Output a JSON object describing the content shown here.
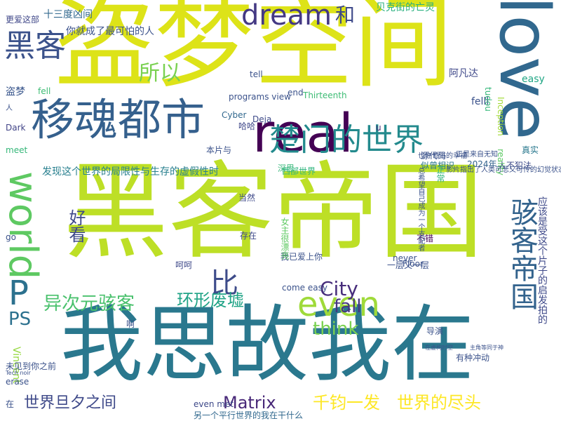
{
  "words": [
    {
      "text": "盗梦空间",
      "color": "#dde318"
    },
    {
      "text": "黑客帝国",
      "color": "#bddf26"
    },
    {
      "text": "我思故我在",
      "color": "#2a788e"
    },
    {
      "text": "love",
      "color": "#31688e"
    },
    {
      "text": "real",
      "color": "#440154"
    },
    {
      "text": "移魂都市",
      "color": "#35608d"
    },
    {
      "text": "楚门的世界",
      "color": "#238a8d"
    },
    {
      "text": "world",
      "color": "#5ec962"
    },
    {
      "text": "黑客",
      "color": "#3b528b"
    },
    {
      "text": "dream",
      "color": "#443983"
    },
    {
      "text": "所以",
      "color": "#7ad151"
    },
    {
      "text": "和",
      "color": "#3e4989"
    },
    {
      "text": "even",
      "color": "#9fda3a"
    },
    {
      "text": "比",
      "color": "#3e4c8a"
    },
    {
      "text": "骇客帝国",
      "color": "#33638d"
    },
    {
      "text": "City",
      "color": "#472d7b"
    },
    {
      "text": "fall",
      "color": "#453781"
    },
    {
      "text": "think",
      "color": "#7ad151"
    },
    {
      "text": "好看",
      "color": "#3e4989"
    },
    {
      "text": "P",
      "color": "#2c718e"
    },
    {
      "text": "PS",
      "color": "#2c718e"
    },
    {
      "text": "异次元骇客",
      "color": "#4ac16d"
    },
    {
      "text": "环形废墟",
      "color": "#20a386"
    },
    {
      "text": "Matrix",
      "color": "#482878"
    },
    {
      "text": "千钧一发",
      "color": "#fde725"
    },
    {
      "text": "世界的尽头",
      "color": "#fde725"
    },
    {
      "text": "世界旦夕之间",
      "color": "#3e4989"
    },
    {
      "text": "Vincent",
      "color": "#95d840"
    },
    {
      "text": "发现这个世界的局限性与生存的虚假性时",
      "color": "#277f8e"
    },
    {
      "text": "西部世界",
      "color": "#2fb47c"
    },
    {
      "text": "源代码",
      "color": "#3b528b"
    },
    {
      "text": "似曾相识",
      "color": "#2a768e"
    },
    {
      "text": "2024年",
      "color": "#33638d"
    },
    {
      "text": "人不犯法",
      "color": "#3e4c8a"
    },
    {
      "text": "阿凡达",
      "color": "#3f4889"
    },
    {
      "text": "贝克街的亡灵",
      "color": "#2ab07f"
    },
    {
      "text": "felll",
      "color": "#3b528b"
    },
    {
      "text": "Inception",
      "color": "#a2da37"
    },
    {
      "text": "reality",
      "color": "#5cc863"
    },
    {
      "text": "真实",
      "color": "#2a788e"
    },
    {
      "text": "easy",
      "color": "#21a685"
    },
    {
      "text": "十三度凶间",
      "color": "#31688e"
    },
    {
      "text": "更爱这部",
      "color": "#3f4788"
    },
    {
      "text": "你就成了最可怕的人",
      "color": "#3b528b"
    },
    {
      "text": "盗梦",
      "color": "#39568c"
    },
    {
      "text": "fell",
      "color": "#3dbc74"
    },
    {
      "text": "Dark",
      "color": "#414487"
    },
    {
      "text": "meet",
      "color": "#35b779"
    },
    {
      "text": "tell",
      "color": "#3b528b"
    },
    {
      "text": "end",
      "color": "#3b528b"
    },
    {
      "text": "Thirteenth",
      "color": "#3dbc74"
    },
    {
      "text": "Floor",
      "color": "#3b528b"
    },
    {
      "text": "programs view",
      "color": "#3b528b"
    },
    {
      "text": "Cyber",
      "color": "#31688e"
    },
    {
      "text": "Deja",
      "color": "#3e4a89"
    },
    {
      "text": "哈哈",
      "color": "#3f4889"
    },
    {
      "text": "本片与",
      "color": "#3b528b"
    },
    {
      "text": "深思",
      "color": "#35b779"
    },
    {
      "text": "tudou",
      "color": "#35b779"
    },
    {
      "text": "正常",
      "color": "#2fb47c"
    },
    {
      "text": "u",
      "color": "#482878"
    },
    {
      "text": "当然",
      "color": "#3e4989"
    },
    {
      "text": "存在",
      "color": "#3e4989"
    },
    {
      "text": "go",
      "color": "#3b528b"
    },
    {
      "text": "呵呵",
      "color": "#3e4989"
    },
    {
      "text": "不错",
      "color": "#440154"
    },
    {
      "text": "我已爱上你",
      "color": "#3b528b"
    },
    {
      "text": "come easy",
      "color": "#3b528b"
    },
    {
      "text": "一层又一层",
      "color": "#3b528b"
    },
    {
      "text": "never",
      "color": "#3b528b"
    },
    {
      "text": "导演",
      "color": "#3b528b"
    },
    {
      "text": "有种冲动",
      "color": "#3b528b"
    },
    {
      "text": "未见到你之前",
      "color": "#3b528b"
    },
    {
      "text": "erase",
      "color": "#3b528b"
    },
    {
      "text": "在",
      "color": "#3b528b"
    },
    {
      "text": "啊",
      "color": "#3b528b"
    },
    {
      "text": "even met",
      "color": "#3e4989"
    },
    {
      "text": "另一个平行世界的我在干什么",
      "color": "#31688e"
    },
    {
      "text": "应该是受这个片子的启发拍的",
      "color": "#3e4989"
    },
    {
      "text": "女主很漂亮",
      "color": "#5ec962"
    },
    {
      "text": "影片指出了人类可悲又可怜的幻觉状态",
      "color": "#3b528b"
    },
    {
      "text": "总希望自己成为一个支配者",
      "color": "#3b528b"
    },
    {
      "text": "也许世俗的幸福",
      "color": "#3b528b"
    },
    {
      "text": "正是来自无知",
      "color": "#3b528b"
    },
    {
      "text": "人",
      "color": "#3b528b"
    },
    {
      "text": "Tech noir",
      "color": "#3b528b"
    },
    {
      "text": "在虚构时空",
      "color": "#3b528b"
    },
    {
      "text": "主角等同于神",
      "color": "#3b528b"
    }
  ]
}
